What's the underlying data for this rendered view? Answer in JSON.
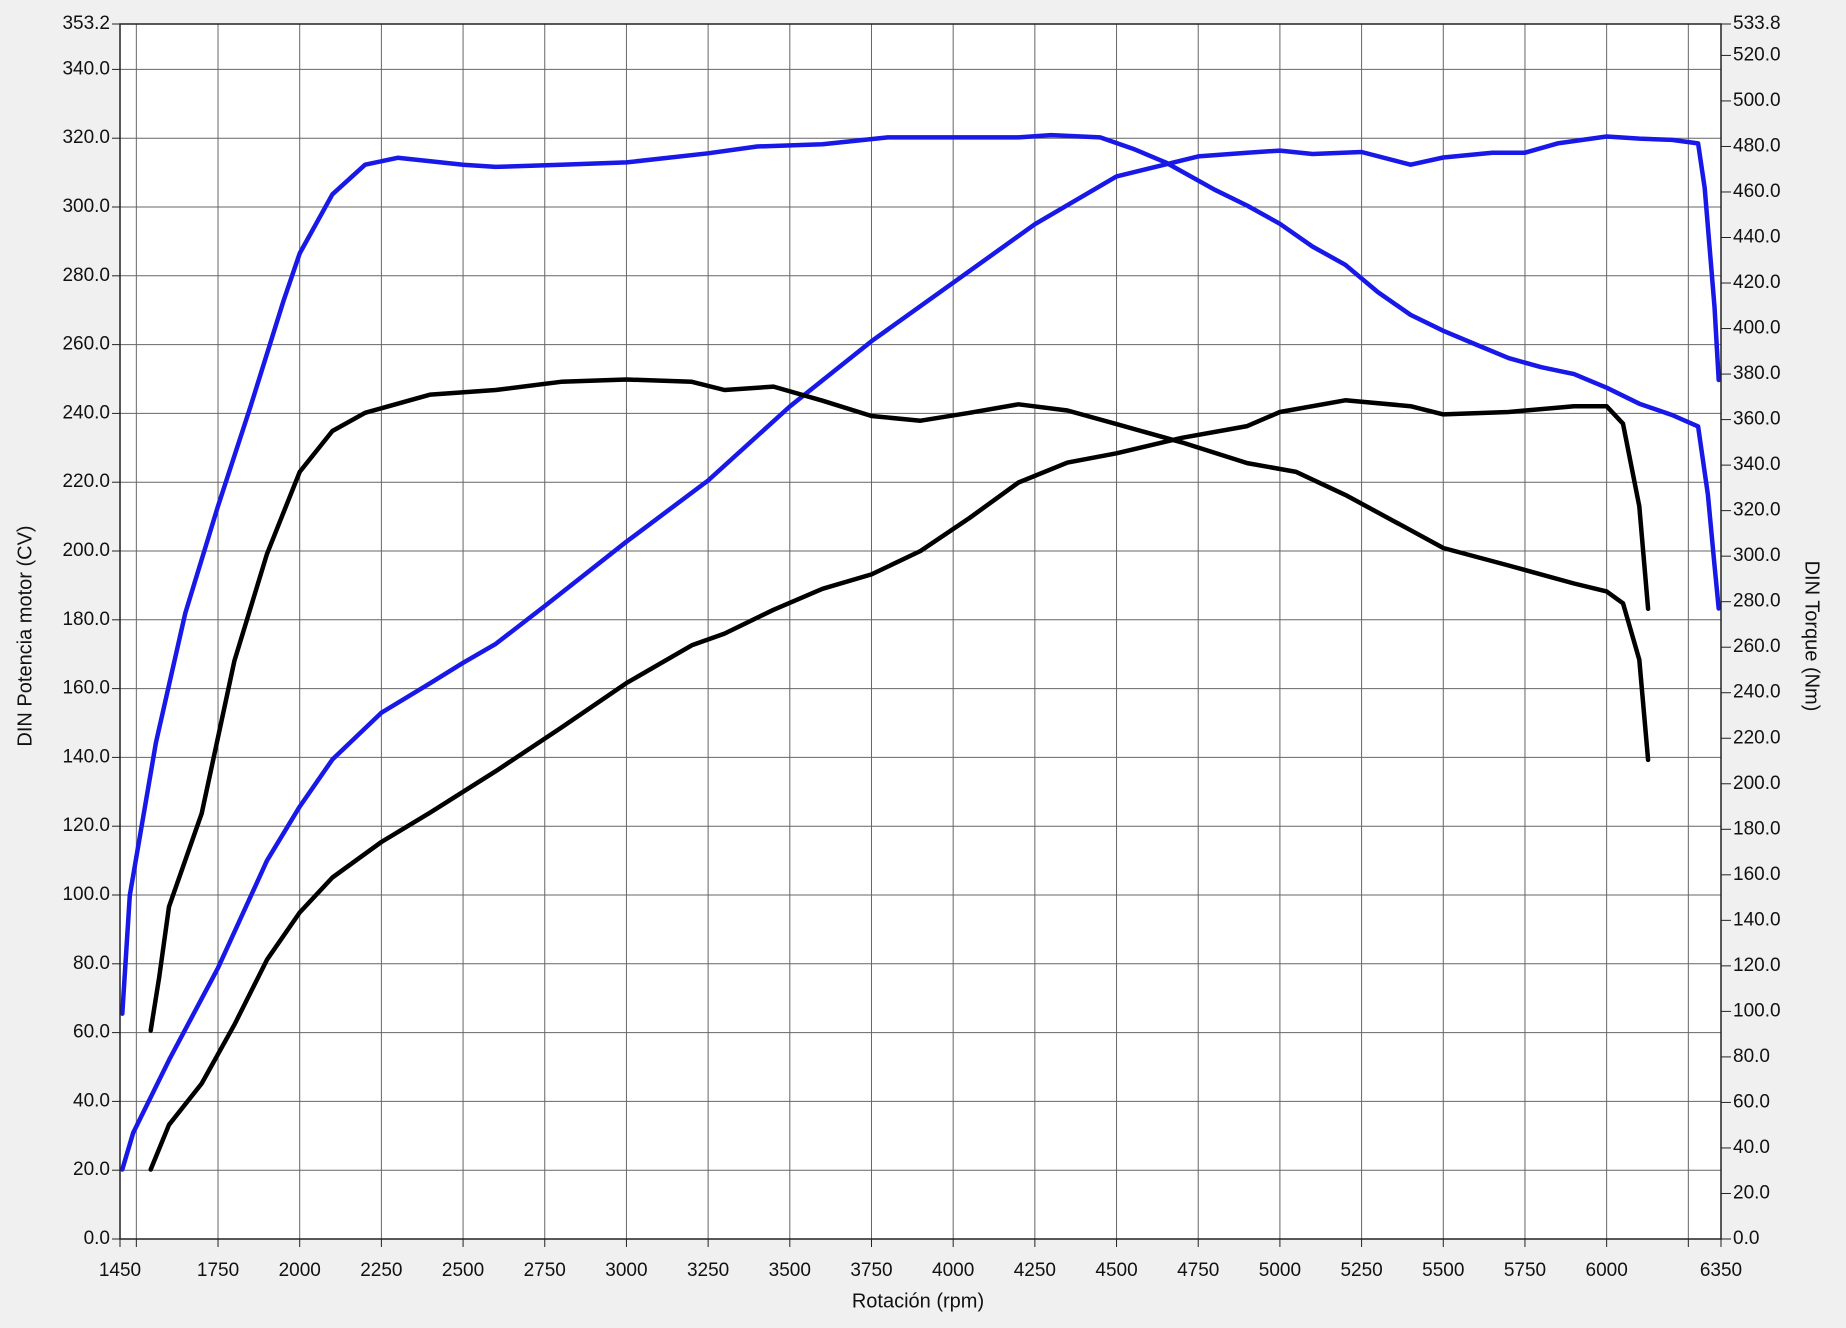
{
  "chart_data": {
    "type": "line",
    "x_label": "Rotación (rpm)",
    "y_label": "DIN Potencia motor (CV)",
    "y2_label": "DIN Torque (Nm)",
    "xlim": [
      1450,
      6350
    ],
    "xticks": [
      1450,
      1750,
      2000,
      2250,
      2500,
      2750,
      3000,
      3250,
      3500,
      3750,
      4000,
      4250,
      4500,
      4750,
      5000,
      5250,
      5500,
      5750,
      6000,
      6350
    ],
    "xminor": [
      1500,
      6250
    ],
    "ylim": [
      0,
      353.2
    ],
    "yticks": [
      {
        "value": 0,
        "label": "0.0"
      },
      {
        "value": 20,
        "label": "20.0"
      },
      {
        "value": 40,
        "label": "40.0"
      },
      {
        "value": 60,
        "label": "60.0"
      },
      {
        "value": 80,
        "label": "80.0"
      },
      {
        "value": 100,
        "label": "100.0"
      },
      {
        "value": 120,
        "label": "120.0"
      },
      {
        "value": 140,
        "label": "140.0"
      },
      {
        "value": 160,
        "label": "160.0"
      },
      {
        "value": 180,
        "label": "180.0"
      },
      {
        "value": 200,
        "label": "200.0"
      },
      {
        "value": 220,
        "label": "220.0"
      },
      {
        "value": 240,
        "label": "240.0"
      },
      {
        "value": 260,
        "label": "260.0"
      },
      {
        "value": 280,
        "label": "280.0"
      },
      {
        "value": 300,
        "label": "300.0"
      },
      {
        "value": 320,
        "label": "320.0"
      },
      {
        "value": 340,
        "label": "340.0"
      },
      353.2
    ],
    "y2lim": [
      0,
      533.8
    ],
    "y2ticks": [
      {
        "value": 0,
        "label": "0.0"
      },
      {
        "value": 20,
        "label": "20.0"
      },
      {
        "value": 40,
        "label": "40.0"
      },
      {
        "value": 60,
        "label": "60.0"
      },
      {
        "value": 80,
        "label": "80.0"
      },
      {
        "value": 100,
        "label": "100.0"
      },
      {
        "value": 120,
        "label": "120.0"
      },
      {
        "value": 140,
        "label": "140.0"
      },
      {
        "value": 160,
        "label": "160.0"
      },
      {
        "value": 180,
        "label": "180.0"
      },
      {
        "value": 200,
        "label": "200.0"
      },
      {
        "value": 220,
        "label": "220.0"
      },
      {
        "value": 240,
        "label": "240.0"
      },
      {
        "value": 260,
        "label": "260.0"
      },
      {
        "value": 280,
        "label": "280.0"
      },
      {
        "value": 300,
        "label": "300.0"
      },
      {
        "value": 320,
        "label": "320.0"
      },
      {
        "value": 340,
        "label": "340.0"
      },
      {
        "value": 360,
        "label": "360.0"
      },
      {
        "value": 380,
        "label": "380.0"
      },
      {
        "value": 400,
        "label": "400.0"
      },
      {
        "value": 420,
        "label": "420.0"
      },
      {
        "value": 440,
        "label": "440.0"
      },
      {
        "value": 460,
        "label": "460.0"
      },
      {
        "value": 480,
        "label": "480.0"
      },
      {
        "value": 500,
        "label": "500.0"
      },
      {
        "value": 520,
        "label": "520.0"
      },
      533.8
    ],
    "grid": true,
    "series": [
      {
        "color": "#1818e8",
        "axis": "y2",
        "x": [
          1457,
          1480,
          1560,
          1650,
          1750,
          1850,
          1950,
          2000,
          2100,
          2200,
          2300,
          2500,
          2600,
          2800,
          3000,
          3250,
          3400,
          3600,
          3800,
          4000,
          4200,
          4300,
          4450,
          4550,
          4650,
          4800,
          4900,
          5000,
          5100,
          5200,
          5300,
          5400,
          5500,
          5600,
          5700,
          5800,
          5900,
          6000,
          6100,
          6200,
          6280,
          6310,
          6330,
          6343
        ],
        "values": [
          99,
          151,
          218,
          275,
          322,
          366,
          412,
          433,
          459,
          472,
          475,
          472,
          471,
          472,
          473,
          477,
          480,
          481,
          484,
          484,
          484,
          485,
          484,
          479,
          473,
          461,
          454,
          446,
          436,
          428,
          416,
          406,
          399,
          393,
          387,
          383,
          380,
          374,
          367,
          362,
          357,
          327,
          296,
          277
        ]
      },
      {
        "color": "#1818e8",
        "axis": "y",
        "x": [
          1457,
          1490,
          1600,
          1750,
          1900,
          2000,
          2100,
          2250,
          2400,
          2500,
          2600,
          2750,
          3000,
          3250,
          3500,
          3750,
          4000,
          4250,
          4500,
          4750,
          4900,
          5000,
          5100,
          5250,
          5400,
          5500,
          5650,
          5750,
          5850,
          6000,
          6100,
          6200,
          6280,
          6300,
          6330,
          6343
        ],
        "values": [
          20.2,
          30.8,
          52,
          78.8,
          110,
          125.7,
          139.4,
          153,
          161.6,
          167.5,
          173,
          184,
          202.7,
          220.5,
          242,
          261,
          278,
          295,
          308.9,
          314.7,
          315.8,
          316.4,
          315.4,
          316,
          312.3,
          314.4,
          315.8,
          315.8,
          318.5,
          320.5,
          319.9,
          319.5,
          318.5,
          305.5,
          271,
          249.7
        ]
      },
      {
        "color": "#000000",
        "axis": "y2",
        "x": [
          1544,
          1570,
          1600,
          1700,
          1800,
          1900,
          2000,
          2100,
          2200,
          2400,
          2600,
          2800,
          3000,
          3200,
          3300,
          3450,
          3600,
          3750,
          3900,
          4050,
          4200,
          4350,
          4500,
          4700,
          4900,
          5050,
          5200,
          5400,
          5500,
          5700,
          5900,
          6000,
          6050,
          6100,
          6127
        ],
        "values": [
          91.6,
          115,
          146,
          187,
          254,
          301,
          337,
          355,
          363,
          371,
          373,
          376.6,
          377.6,
          376.6,
          373,
          374.5,
          368.3,
          361.6,
          359.5,
          363,
          366.7,
          364,
          358,
          350,
          340.9,
          337,
          326.9,
          311.4,
          303.6,
          295.9,
          288,
          284.5,
          279.3,
          254.5,
          210.5
        ]
      },
      {
        "color": "#000000",
        "axis": "y",
        "x": [
          1544,
          1600,
          1700,
          1800,
          1900,
          2000,
          2100,
          2250,
          2400,
          2600,
          2800,
          3000,
          3200,
          3300,
          3450,
          3600,
          3750,
          3900,
          4050,
          4200,
          4350,
          4500,
          4700,
          4900,
          5000,
          5200,
          5400,
          5500,
          5700,
          5900,
          6000,
          6050,
          6100,
          6127
        ],
        "values": [
          20.2,
          33.2,
          45.2,
          62.3,
          81.2,
          94.9,
          105.1,
          115.4,
          124,
          136,
          148.6,
          161.6,
          172.6,
          176,
          182.9,
          189,
          193.2,
          200,
          209.6,
          219.9,
          225.7,
          228.4,
          232.9,
          236.3,
          240.4,
          243.8,
          242.1,
          239.7,
          240.4,
          242.1,
          242.1,
          237,
          213,
          183.2
        ]
      }
    ]
  }
}
